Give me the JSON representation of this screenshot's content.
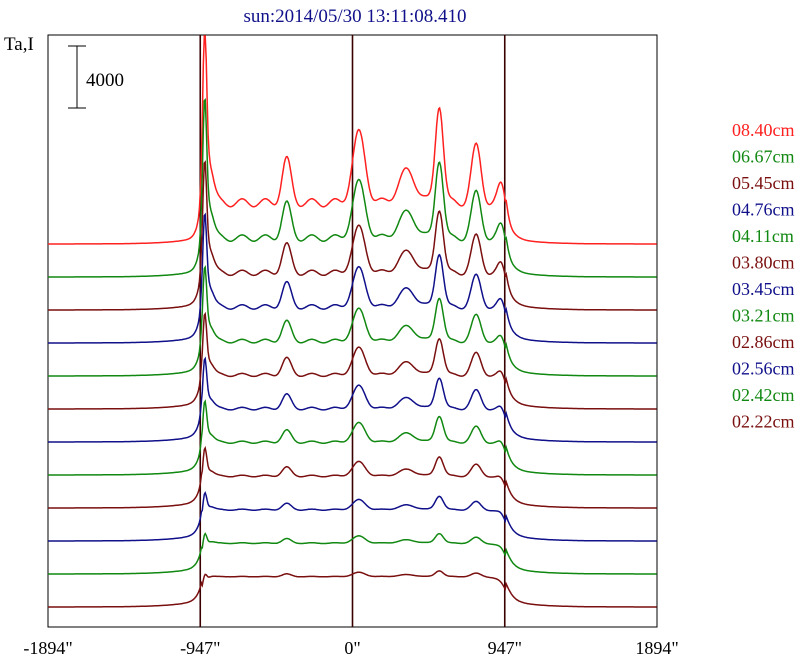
{
  "chart_data": {
    "type": "line",
    "title": "sun:2014/05/30 13:11:08.410",
    "ylabel": "Ta,I",
    "scale_bar_label": "4000",
    "scale_bar_value": 4000,
    "x_ticks": [
      {
        "value": -1894,
        "label": "-1894\""
      },
      {
        "value": -947,
        "label": "-947\""
      },
      {
        "value": 0,
        "label": "0\""
      },
      {
        "value": 947,
        "label": "947\""
      },
      {
        "value": 1894,
        "label": "1894\""
      }
    ],
    "xlim": [
      -1894,
      1894
    ],
    "vertical_markers": [
      -947,
      0,
      947
    ],
    "colors": {
      "red": "#ff2020",
      "green": "#118811",
      "maroon": "#7a0f0f",
      "navy": "#10108a",
      "frame": "#000000"
    },
    "legend_position": "right",
    "series": [
      {
        "name": "08.40cm",
        "color": "red",
        "baseline": 12000,
        "shape": "peaked",
        "peak_scale": 1.0
      },
      {
        "name": "06.67cm",
        "color": "green",
        "baseline": 11000,
        "shape": "peaked",
        "peak_scale": 0.8
      },
      {
        "name": "05.45cm",
        "color": "maroon",
        "baseline": 10000,
        "shape": "peaked",
        "peak_scale": 0.65
      },
      {
        "name": "04.76cm",
        "color": "navy",
        "baseline": 9000,
        "shape": "peaked",
        "peak_scale": 0.55
      },
      {
        "name": "04.11cm",
        "color": "green",
        "baseline": 8000,
        "shape": "peaked",
        "peak_scale": 0.45
      },
      {
        "name": "03.80cm",
        "color": "maroon",
        "baseline": 7000,
        "shape": "peaked",
        "peak_scale": 0.38
      },
      {
        "name": "03.45cm",
        "color": "navy",
        "baseline": 6000,
        "shape": "peaked",
        "peak_scale": 0.32
      },
      {
        "name": "03.21cm",
        "color": "green",
        "baseline": 5000,
        "shape": "peaked",
        "peak_scale": 0.27
      },
      {
        "name": "02.86cm",
        "color": "maroon",
        "baseline": 4000,
        "shape": "peaked",
        "peak_scale": 0.2
      },
      {
        "name": "02.56cm",
        "color": "navy",
        "baseline": 3000,
        "shape": "peaked",
        "peak_scale": 0.14
      },
      {
        "name": "02.42cm",
        "color": "green",
        "baseline": 2000,
        "shape": "peaked",
        "peak_scale": 0.1
      },
      {
        "name": "02.22cm",
        "color": "maroon",
        "baseline": 1000,
        "shape": "peaked",
        "peak_scale": 0.06
      }
    ]
  }
}
